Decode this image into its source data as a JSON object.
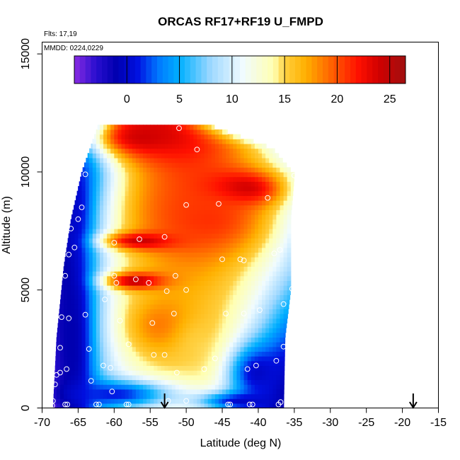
{
  "chart_data": {
    "type": "heatmap",
    "title": "ORCAS RF17+RF19 U_FMPD",
    "flights_label": "Flts: 17,19",
    "date_label": "MMDD: 0224,0229",
    "xlabel": "Latitude (deg N)",
    "ylabel": "Altitude (m)",
    "xlim": [
      -70,
      -15
    ],
    "ylim": [
      0,
      15500
    ],
    "x_ticks": [
      -70,
      -65,
      -60,
      -55,
      -50,
      -45,
      -40,
      -35,
      -30,
      -25,
      -20,
      -15
    ],
    "x_tick_labels": [
      "-70",
      "-65",
      "-60",
      "-55",
      "-50",
      "-45",
      "-40",
      "-35",
      "-30",
      "-25",
      "-20",
      "-15"
    ],
    "y_ticks": [
      0,
      5000,
      10000,
      15000
    ],
    "y_tick_labels": [
      "0",
      "5000",
      "10000",
      "15000"
    ],
    "colorbar": {
      "min": -5,
      "max": 26.5,
      "ticks": [
        0,
        5,
        10,
        15,
        20,
        25
      ],
      "tick_labels": [
        "0",
        "5",
        "10",
        "15",
        "20",
        "25"
      ],
      "stops": [
        [
          -5,
          "#8a2be2"
        ],
        [
          -3,
          "#2b0fd0"
        ],
        [
          -1,
          "#0000b0"
        ],
        [
          1,
          "#0010e0"
        ],
        [
          3,
          "#0078ff"
        ],
        [
          5,
          "#00b0ff"
        ],
        [
          8,
          "#9fd8ff"
        ],
        [
          11,
          "#f0fbff"
        ],
        [
          14,
          "#ffffb0"
        ],
        [
          15,
          "#ffd040"
        ],
        [
          17,
          "#ffb000"
        ],
        [
          19,
          "#ff7000"
        ],
        [
          22,
          "#ff1000"
        ],
        [
          24,
          "#d00000"
        ],
        [
          26.5,
          "#a01010"
        ]
      ]
    },
    "field_domain": {
      "lat_range": [
        -68.5,
        -35
      ],
      "alt_range": [
        0,
        12000
      ],
      "left_edge": [
        [
          0,
          -68.5
        ],
        [
          3000,
          -68
        ],
        [
          6000,
          -67
        ],
        [
          8000,
          -66
        ],
        [
          10000,
          -64.5
        ],
        [
          12000,
          -62.2
        ]
      ],
      "right_edge": [
        [
          0,
          -36.5
        ],
        [
          3000,
          -36.3
        ],
        [
          5000,
          -35.5
        ],
        [
          8000,
          -35.5
        ],
        [
          9900,
          -35
        ],
        [
          11000,
          -38
        ],
        [
          12000,
          -47
        ]
      ]
    },
    "field_features": [
      {
        "lat": -56,
        "alt": 11500,
        "value": 24,
        "width_lat": 7,
        "width_alt": 900
      },
      {
        "lat": -42,
        "alt": 9300,
        "value": 25,
        "width_lat": 5,
        "width_alt": 700
      },
      {
        "lat": -56,
        "alt": 7100,
        "value": 25,
        "width_lat": 5,
        "width_alt": 350
      },
      {
        "lat": -57,
        "alt": 5400,
        "value": 25,
        "width_lat": 4,
        "width_alt": 350
      },
      {
        "lat": -47,
        "alt": 8000,
        "value": 21,
        "width_lat": 8,
        "width_alt": 1500
      },
      {
        "lat": -53,
        "alt": 3500,
        "value": 19,
        "width_lat": 5,
        "width_alt": 1200
      },
      {
        "lat": -48,
        "alt": 2500,
        "value": 15,
        "width_lat": 4,
        "width_alt": 1500
      },
      {
        "lat": -66,
        "alt": 3000,
        "value": -1,
        "width_lat": 2.5,
        "width_alt": 4000
      },
      {
        "lat": -66,
        "alt": 8500,
        "value": 0,
        "width_lat": 2,
        "width_alt": 1500
      },
      {
        "lat": -40,
        "alt": 1500,
        "value": 0,
        "width_lat": 4,
        "width_alt": 1200
      },
      {
        "lat": -60,
        "alt": 600,
        "value": 1,
        "width_lat": 8,
        "width_alt": 600
      },
      {
        "lat": -42,
        "alt": 300,
        "value": 0,
        "width_lat": 6,
        "width_alt": 400
      }
    ],
    "sample_points": [
      {
        "x": -51,
        "y": 11850
      },
      {
        "x": -48.5,
        "y": 10950
      },
      {
        "x": -35,
        "y": 9850
      },
      {
        "x": -64,
        "y": 9900
      },
      {
        "x": -64.5,
        "y": 8500
      },
      {
        "x": -50,
        "y": 8600
      },
      {
        "x": -45.5,
        "y": 8650
      },
      {
        "x": -38.7,
        "y": 8900
      },
      {
        "x": -65,
        "y": 8000
      },
      {
        "x": -66,
        "y": 7600
      },
      {
        "x": -53,
        "y": 7250
      },
      {
        "x": -56.5,
        "y": 7150
      },
      {
        "x": -60,
        "y": 7000
      },
      {
        "x": -37,
        "y": 6700
      },
      {
        "x": -37.8,
        "y": 6550
      },
      {
        "x": -66.3,
        "y": 6500
      },
      {
        "x": -65.5,
        "y": 6800
      },
      {
        "x": -45,
        "y": 6300
      },
      {
        "x": -42.5,
        "y": 6300
      },
      {
        "x": -42,
        "y": 6250
      },
      {
        "x": -66.8,
        "y": 5600
      },
      {
        "x": -60,
        "y": 5600
      },
      {
        "x": -51.5,
        "y": 5600
      },
      {
        "x": -57,
        "y": 5450
      },
      {
        "x": -55.2,
        "y": 5300
      },
      {
        "x": -59.7,
        "y": 5300
      },
      {
        "x": -35.3,
        "y": 5050
      },
      {
        "x": -50,
        "y": 5000
      },
      {
        "x": -52.7,
        "y": 4950
      },
      {
        "x": -61.3,
        "y": 4600
      },
      {
        "x": -36.5,
        "y": 4400
      },
      {
        "x": -44.5,
        "y": 4000
      },
      {
        "x": -42,
        "y": 4000
      },
      {
        "x": -39.8,
        "y": 4150
      },
      {
        "x": -51.7,
        "y": 4000
      },
      {
        "x": -64,
        "y": 3950
      },
      {
        "x": -67.3,
        "y": 3850
      },
      {
        "x": -66.3,
        "y": 3800
      },
      {
        "x": -54.7,
        "y": 3600
      },
      {
        "x": -59.2,
        "y": 3700
      },
      {
        "x": -58,
        "y": 2700
      },
      {
        "x": -36.5,
        "y": 2600
      },
      {
        "x": -67.5,
        "y": 2550
      },
      {
        "x": -63.5,
        "y": 2500
      },
      {
        "x": -54.5,
        "y": 2250
      },
      {
        "x": -53,
        "y": 2250
      },
      {
        "x": -46,
        "y": 2100
      },
      {
        "x": -37.5,
        "y": 2000
      },
      {
        "x": -61.5,
        "y": 1800
      },
      {
        "x": -40.3,
        "y": 1800
      },
      {
        "x": -47.5,
        "y": 1650
      },
      {
        "x": -41.5,
        "y": 1650
      },
      {
        "x": -60.5,
        "y": 1700
      },
      {
        "x": -66.6,
        "y": 1650
      },
      {
        "x": -51.3,
        "y": 1500
      },
      {
        "x": -67.5,
        "y": 1500
      },
      {
        "x": -68,
        "y": 1400
      },
      {
        "x": -63.2,
        "y": 1150
      },
      {
        "x": -68.2,
        "y": 1000
      },
      {
        "x": -60.3,
        "y": 700
      },
      {
        "x": -68.5,
        "y": 300
      },
      {
        "x": -68.6,
        "y": 100
      },
      {
        "x": -66.5,
        "y": 150
      },
      {
        "x": -66.8,
        "y": 150
      },
      {
        "x": -62.5,
        "y": 150
      },
      {
        "x": -62.1,
        "y": 150
      },
      {
        "x": -58.3,
        "y": 150
      },
      {
        "x": -58,
        "y": 150
      },
      {
        "x": -52.5,
        "y": 300
      },
      {
        "x": -50,
        "y": 300
      },
      {
        "x": -44.2,
        "y": 150
      },
      {
        "x": -43.9,
        "y": 150
      },
      {
        "x": -41.2,
        "y": 150
      },
      {
        "x": -40.8,
        "y": 150
      },
      {
        "x": -37.2,
        "y": 150
      },
      {
        "x": -36.9,
        "y": 250
      }
    ],
    "arrows": [
      {
        "lat": -53,
        "label": "arrow-1"
      },
      {
        "lat": -18.5,
        "label": "arrow-2"
      }
    ],
    "grid": false,
    "legend": "colorbar top"
  }
}
